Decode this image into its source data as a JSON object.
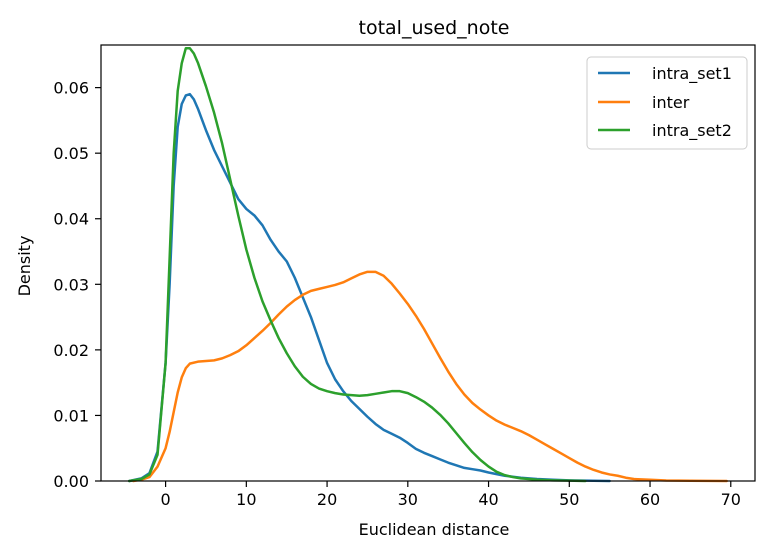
{
  "chart_data": {
    "type": "line",
    "title": "total_used_note",
    "xlabel": "Euclidean distance",
    "ylabel": "Density",
    "xlim": [
      -8,
      73
    ],
    "ylim": [
      0,
      0.0665
    ],
    "xticks": [
      0,
      10,
      20,
      30,
      40,
      50,
      60,
      70
    ],
    "yticks": [
      0.0,
      0.01,
      0.02,
      0.03,
      0.04,
      0.05,
      0.06
    ],
    "ytick_labels": [
      "0.00",
      "0.01",
      "0.02",
      "0.03",
      "0.04",
      "0.05",
      "0.06"
    ],
    "grid": false,
    "legend_position": "top-right",
    "series": [
      {
        "name": "intra_set1",
        "color": "#1f77b4",
        "points": [
          [
            -4.5,
            0
          ],
          [
            -3,
            0.0004
          ],
          [
            -2,
            0.0012
          ],
          [
            -1,
            0.0045
          ],
          [
            0,
            0.018
          ],
          [
            0.5,
            0.03
          ],
          [
            1,
            0.045
          ],
          [
            1.5,
            0.054
          ],
          [
            2,
            0.0575
          ],
          [
            2.5,
            0.0588
          ],
          [
            3,
            0.059
          ],
          [
            3.5,
            0.0582
          ],
          [
            4,
            0.0568
          ],
          [
            5,
            0.0535
          ],
          [
            6,
            0.0505
          ],
          [
            7,
            0.048
          ],
          [
            8,
            0.0455
          ],
          [
            9,
            0.043
          ],
          [
            10,
            0.0415
          ],
          [
            11,
            0.0405
          ],
          [
            12,
            0.039
          ],
          [
            13,
            0.0368
          ],
          [
            14,
            0.035
          ],
          [
            15,
            0.0335
          ],
          [
            16,
            0.031
          ],
          [
            17,
            0.028
          ],
          [
            18,
            0.025
          ],
          [
            19,
            0.0215
          ],
          [
            20,
            0.018
          ],
          [
            21,
            0.0155
          ],
          [
            22,
            0.0137
          ],
          [
            23,
            0.0122
          ],
          [
            24,
            0.011
          ],
          [
            25,
            0.0098
          ],
          [
            26,
            0.0087
          ],
          [
            27,
            0.0078
          ],
          [
            28,
            0.0072
          ],
          [
            29,
            0.0066
          ],
          [
            30,
            0.0058
          ],
          [
            31,
            0.0049
          ],
          [
            32,
            0.0043
          ],
          [
            33,
            0.0038
          ],
          [
            34,
            0.0033
          ],
          [
            35,
            0.0028
          ],
          [
            36,
            0.0024
          ],
          [
            37,
            0.002
          ],
          [
            38,
            0.0018
          ],
          [
            39,
            0.0016
          ],
          [
            40,
            0.0013
          ],
          [
            42,
            0.0008
          ],
          [
            44,
            0.0005
          ],
          [
            46,
            0.0003
          ],
          [
            48,
            0.0002
          ],
          [
            50,
            0.0001
          ],
          [
            52,
            5e-05
          ],
          [
            55,
            0
          ]
        ]
      },
      {
        "name": "inter",
        "color": "#ff7f0e",
        "points": [
          [
            -4,
            0
          ],
          [
            -3,
            0.0002
          ],
          [
            -2,
            0.0006
          ],
          [
            -1,
            0.0022
          ],
          [
            0,
            0.005
          ],
          [
            0.5,
            0.0075
          ],
          [
            1,
            0.0105
          ],
          [
            1.5,
            0.0135
          ],
          [
            2,
            0.0158
          ],
          [
            2.5,
            0.0172
          ],
          [
            3,
            0.0179
          ],
          [
            4,
            0.0182
          ],
          [
            5,
            0.0183
          ],
          [
            6,
            0.0184
          ],
          [
            7,
            0.0187
          ],
          [
            8,
            0.0192
          ],
          [
            9,
            0.0198
          ],
          [
            10,
            0.0207
          ],
          [
            11,
            0.0218
          ],
          [
            12,
            0.0229
          ],
          [
            13,
            0.0241
          ],
          [
            14,
            0.0254
          ],
          [
            15,
            0.0266
          ],
          [
            16,
            0.0276
          ],
          [
            17,
            0.0284
          ],
          [
            18,
            0.029
          ],
          [
            19,
            0.0293
          ],
          [
            20,
            0.0296
          ],
          [
            21,
            0.0299
          ],
          [
            22,
            0.0303
          ],
          [
            23,
            0.0309
          ],
          [
            24,
            0.0315
          ],
          [
            25,
            0.0319
          ],
          [
            26,
            0.0319
          ],
          [
            27,
            0.0313
          ],
          [
            28,
            0.0301
          ],
          [
            29,
            0.0286
          ],
          [
            30,
            0.027
          ],
          [
            31,
            0.0252
          ],
          [
            32,
            0.0232
          ],
          [
            33,
            0.021
          ],
          [
            34,
            0.0188
          ],
          [
            35,
            0.0167
          ],
          [
            36,
            0.0148
          ],
          [
            37,
            0.0132
          ],
          [
            38,
            0.0119
          ],
          [
            39,
            0.0109
          ],
          [
            40,
            0.01
          ],
          [
            41,
            0.0092
          ],
          [
            42,
            0.0086
          ],
          [
            43,
            0.0081
          ],
          [
            44,
            0.0076
          ],
          [
            45,
            0.007
          ],
          [
            46,
            0.0063
          ],
          [
            47,
            0.0056
          ],
          [
            48,
            0.0049
          ],
          [
            49,
            0.0042
          ],
          [
            50,
            0.0035
          ],
          [
            51,
            0.0028
          ],
          [
            52,
            0.0022
          ],
          [
            53,
            0.0017
          ],
          [
            54,
            0.0013
          ],
          [
            55,
            0.001
          ],
          [
            56,
            0.0008
          ],
          [
            57,
            0.0005
          ],
          [
            58,
            0.0003
          ],
          [
            60,
            0.0002
          ],
          [
            62,
            8e-05
          ],
          [
            65,
            3e-05
          ],
          [
            69.5,
            0
          ]
        ]
      },
      {
        "name": "intra_set2",
        "color": "#2ca02c",
        "points": [
          [
            -4.5,
            0
          ],
          [
            -3,
            0.0003
          ],
          [
            -2,
            0.001
          ],
          [
            -1,
            0.004
          ],
          [
            0,
            0.018
          ],
          [
            0.5,
            0.034
          ],
          [
            1,
            0.05
          ],
          [
            1.5,
            0.0595
          ],
          [
            2,
            0.0637
          ],
          [
            2.5,
            0.066
          ],
          [
            3,
            0.066
          ],
          [
            3.5,
            0.0652
          ],
          [
            4,
            0.0638
          ],
          [
            5,
            0.0602
          ],
          [
            6,
            0.0562
          ],
          [
            7,
            0.0515
          ],
          [
            8,
            0.046
          ],
          [
            9,
            0.0405
          ],
          [
            10,
            0.0353
          ],
          [
            11,
            0.031
          ],
          [
            12,
            0.0274
          ],
          [
            13,
            0.0245
          ],
          [
            14,
            0.0218
          ],
          [
            15,
            0.0195
          ],
          [
            16,
            0.0175
          ],
          [
            17,
            0.0159
          ],
          [
            18,
            0.0148
          ],
          [
            19,
            0.0141
          ],
          [
            20,
            0.0137
          ],
          [
            21,
            0.0134
          ],
          [
            22,
            0.0132
          ],
          [
            23,
            0.0131
          ],
          [
            24,
            0.013
          ],
          [
            25,
            0.0131
          ],
          [
            26,
            0.0133
          ],
          [
            27,
            0.0135
          ],
          [
            28,
            0.0137
          ],
          [
            29,
            0.0137
          ],
          [
            30,
            0.0134
          ],
          [
            31,
            0.0128
          ],
          [
            32,
            0.0121
          ],
          [
            33,
            0.0112
          ],
          [
            34,
            0.0101
          ],
          [
            35,
            0.0088
          ],
          [
            36,
            0.0073
          ],
          [
            37,
            0.0058
          ],
          [
            38,
            0.0044
          ],
          [
            39,
            0.0032
          ],
          [
            40,
            0.0022
          ],
          [
            41,
            0.0014
          ],
          [
            42,
            0.0009
          ],
          [
            43,
            0.0006
          ],
          [
            44,
            0.0004
          ],
          [
            45,
            0.0003
          ],
          [
            46,
            0.0002
          ],
          [
            48,
            0.0001
          ],
          [
            50,
            5e-05
          ],
          [
            52,
            0
          ]
        ]
      }
    ]
  }
}
